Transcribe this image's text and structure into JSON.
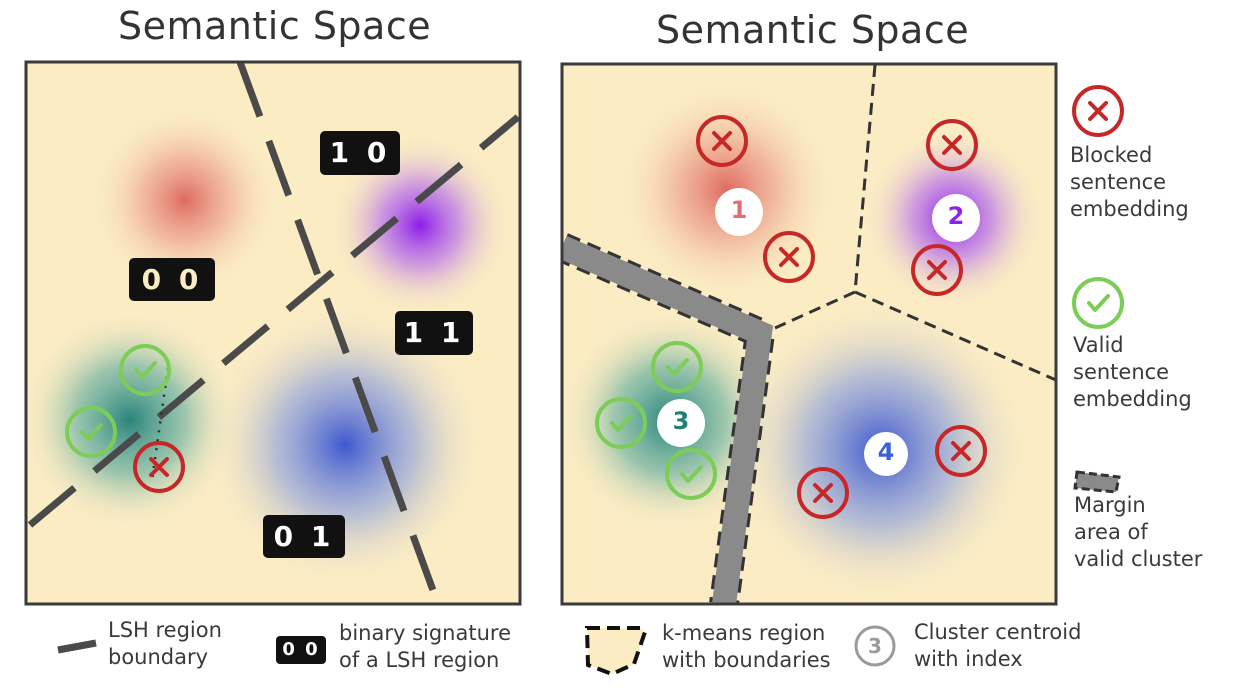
{
  "panels": {
    "left": {
      "title": "Semantic Space",
      "signatures": [
        "1 0",
        "0 0",
        "1 1",
        "0 1"
      ]
    },
    "right": {
      "title": "Semantic Space",
      "centroids": [
        "1",
        "2",
        "3",
        "4"
      ]
    }
  },
  "legend_right": {
    "blocked": "Blocked\nsentence\nembedding",
    "valid": "Valid\nsentence\nembedding",
    "margin": "Margin\narea of\nvalid cluster"
  },
  "legend_bottom": {
    "lsh_boundary": "LSH region\nboundary",
    "signature_sample": "0 0",
    "binary_signature": "binary signature\nof a LSH region",
    "kmeans_region": "k-means region\nwith boundaries",
    "centroid_sample": "3",
    "cluster_centroid": "Cluster centroid\nwith index"
  },
  "colors": {
    "background": "#fbecc4",
    "red_cluster": "#d9534f",
    "purple_cluster": "#8e24e8",
    "teal_cluster": "#1e7f78",
    "blue_cluster": "#3b5fd6",
    "blocked_marker": "#c62828",
    "valid_marker": "#7ccd57",
    "boundary": "#4a4a4a",
    "margin": "#8a8a8a"
  },
  "icons": [
    "cross-circle-icon",
    "check-circle-icon",
    "lsh-boundary-icon",
    "kmeans-region-icon",
    "centroid-icon"
  ]
}
